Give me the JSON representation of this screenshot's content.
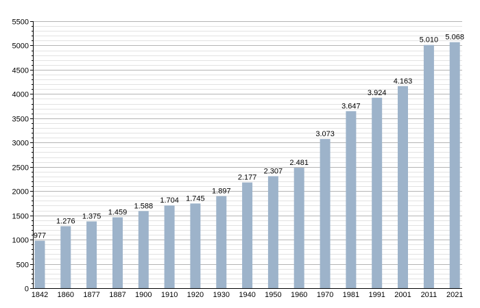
{
  "chart_data": {
    "type": "bar",
    "categories": [
      "1842",
      "1860",
      "1877",
      "1887",
      "1900",
      "1910",
      "1920",
      "1930",
      "1940",
      "1950",
      "1960",
      "1970",
      "1981",
      "1991",
      "2001",
      "2011",
      "2021"
    ],
    "values": [
      977,
      1276,
      1375,
      1459,
      1588,
      1704,
      1745,
      1897,
      2177,
      2307,
      2481,
      3073,
      3647,
      3924,
      4163,
      5010,
      5068
    ],
    "data_labels": [
      "977",
      "1.276",
      "1.375",
      "1.459",
      "1.588",
      "1.704",
      "1.745",
      "1.897",
      "2.177",
      "2.307",
      "2.481",
      "3.073",
      "3.647",
      "3.924",
      "4.163",
      "5.010",
      "5.068"
    ],
    "y_ticks": [
      0,
      500,
      1000,
      1500,
      2000,
      2500,
      3000,
      3500,
      4000,
      4500,
      5000,
      5500
    ],
    "ylim": [
      0,
      5500
    ],
    "title": "",
    "xlabel": "",
    "ylabel": "",
    "grid": true,
    "legend": "none",
    "bar_color": "#9db3ca"
  }
}
